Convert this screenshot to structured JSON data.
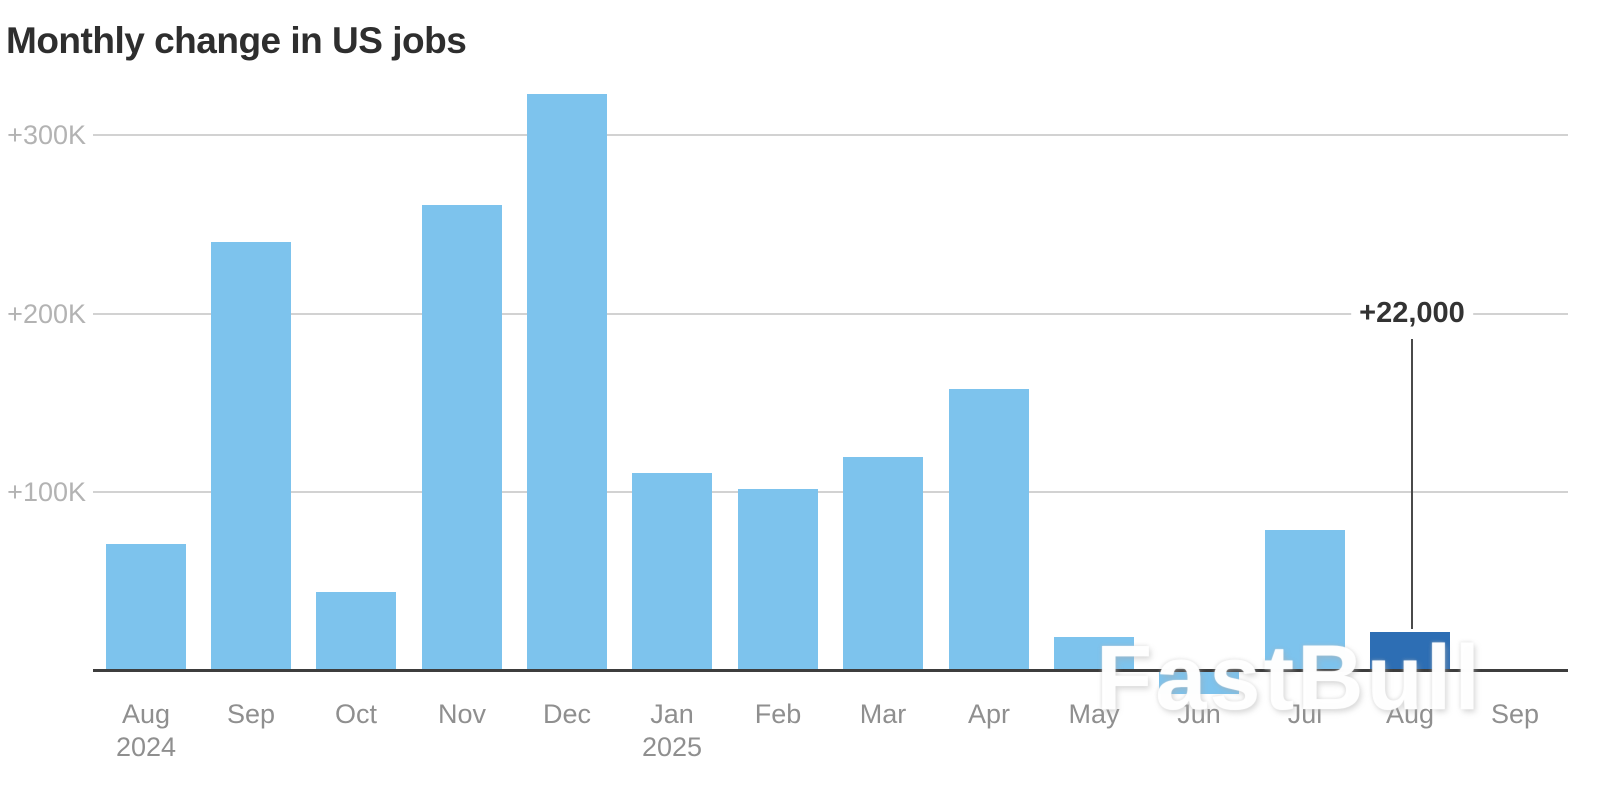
{
  "chart_data": {
    "type": "bar",
    "title": "Monthly change in US jobs",
    "categories": [
      "Aug\n2024",
      "Sep",
      "Oct",
      "Nov",
      "Dec",
      "Jan\n2025",
      "Feb",
      "Mar",
      "Apr",
      "May",
      "Jun",
      "Jul",
      "Aug",
      "Sep"
    ],
    "values": [
      71,
      240,
      44,
      261,
      323,
      111,
      102,
      120,
      158,
      19,
      -13,
      79,
      22,
      null
    ],
    "value_unit": "thousands",
    "highlight_index": 12,
    "annotation": {
      "text": "+22,000",
      "target_category_index": 12
    },
    "yticks": [
      {
        "label": "+300K",
        "value": 300
      },
      {
        "label": "+200K",
        "value": 200
      },
      {
        "label": "+100K",
        "value": 100
      }
    ],
    "ylim": [
      -30,
      340
    ],
    "grid": true,
    "legend_shown": false,
    "colors": {
      "bar_default": "#7dc3ed",
      "bar_highlight": "#2d6eb4",
      "gridline": "#d2d2d2",
      "axis_line": "#3d3d3d",
      "title_text": "#2e2e2e",
      "ytick_text": "#b3b3b3",
      "xtick_text": "#8f8f8f",
      "annotation_text": "#333333"
    }
  },
  "watermark": {
    "text": "FastBull"
  }
}
